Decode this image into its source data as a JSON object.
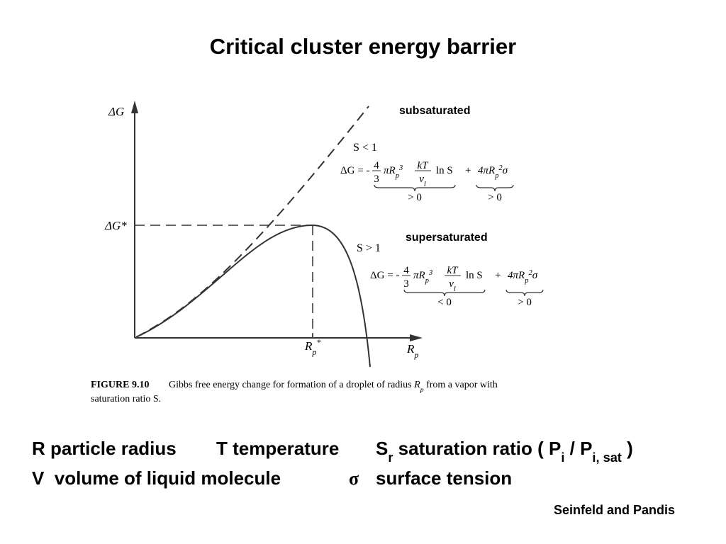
{
  "title": "Critical cluster energy barrier",
  "figure": {
    "y_axis_label": "ΔG",
    "critical_energy_label": "ΔG*",
    "x_axis_label": {
      "base": "R",
      "sub": "p"
    },
    "critical_radius_label": {
      "base": "R",
      "sub": "p",
      "sup": "*"
    },
    "curves": [
      {
        "annotation": "subsaturated",
        "condition": "S < 1",
        "equation": {
          "lhs": "ΔG = -",
          "frac1_num": "4",
          "frac1_den": "3",
          "term1": "πR",
          "term1_sub": "p",
          "term1_sup": "3",
          "frac2_num": "kT",
          "frac2_den": "v",
          "frac2_den_sub": "l",
          "log": "ln S",
          "plus": "+",
          "term2": "4πR",
          "term2_sub": "p",
          "term2_sup": "2",
          "term2_end": "σ"
        },
        "term_signs": [
          "> 0",
          "> 0"
        ]
      },
      {
        "annotation": "supersaturated",
        "condition": "S > 1",
        "equation": {
          "lhs": "ΔG = -",
          "frac1_num": "4",
          "frac1_den": "3",
          "term1": "πR",
          "term1_sub": "p",
          "term1_sup": "3",
          "frac2_num": "kT",
          "frac2_den": "v",
          "frac2_den_sub": "l",
          "log": "ln S",
          "plus": "+",
          "term2": "4πR",
          "term2_sub": "p",
          "term2_sup": "2",
          "term2_end": "σ"
        },
        "term_signs": [
          "< 0",
          "> 0"
        ]
      }
    ],
    "caption": {
      "label": "FIGURE 9.10",
      "text_before": "Gibbs free energy change for formation of a droplet of radius ",
      "symbol": {
        "base": "R",
        "sub": "p"
      },
      "text_after": " from a vapor with",
      "line2": "saturation ratio S."
    }
  },
  "definitions": {
    "radius": "R particle radius",
    "temperature": "T temperature",
    "saturation_symbol": "S",
    "saturation_sub": "r",
    "saturation_text": " saturation ratio ( P",
    "pressure_sub": "i",
    "divider": " / P",
    "sat_sub": "i, sat",
    "close": " )",
    "volume": "V  volume of liquid molecule",
    "sigma_symbol": "σ",
    "surface_tension": "surface tension"
  },
  "citation": "Seinfeld and Pandis"
}
